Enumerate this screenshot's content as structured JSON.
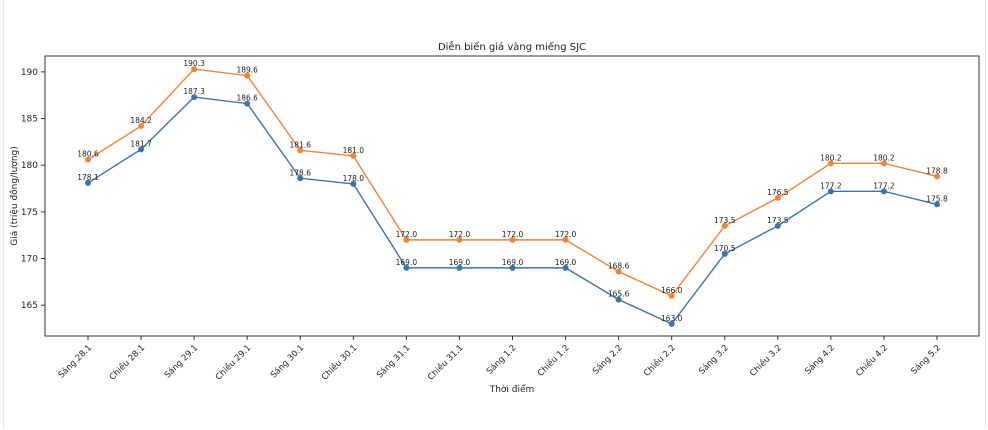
{
  "chart_data": {
    "type": "line",
    "title": "Diễn biến giá vàng miếng SJC",
    "xlabel": "Thời điểm",
    "ylabel": "Giá (triệu đồng/lượng)",
    "ylim": [
      161.7,
      191.7
    ],
    "yticks": [
      165,
      170,
      175,
      180,
      185,
      190
    ],
    "grid": false,
    "categories": [
      "Sáng 28.1",
      "Chiều 28.1",
      "Sáng 29.1",
      "Chiều 29.1",
      "Sáng 30.1",
      "Chiều 30.1",
      "Sáng 31.1",
      "Chiều 31.1",
      "Sáng 1.2",
      "Chiều 1.2",
      "Sáng 2.2",
      "Chiều 2.2",
      "Sáng 3.2",
      "Chiều 3.2",
      "Sáng 4.2",
      "Chiều 4.2",
      "Sáng 5.2"
    ],
    "series": [
      {
        "color": "#3a75ae",
        "values": [
          178.1,
          181.7,
          187.3,
          186.6,
          178.6,
          178.0,
          169.0,
          169.0,
          169.0,
          169.0,
          165.6,
          163.0,
          170.5,
          173.5,
          177.2,
          177.2,
          175.8
        ]
      },
      {
        "color": "#ef8536",
        "values": [
          180.6,
          184.2,
          190.3,
          189.6,
          181.6,
          181.0,
          172.0,
          172.0,
          172.0,
          172.0,
          168.6,
          166.0,
          173.5,
          176.5,
          180.2,
          180.2,
          178.8
        ]
      }
    ]
  }
}
